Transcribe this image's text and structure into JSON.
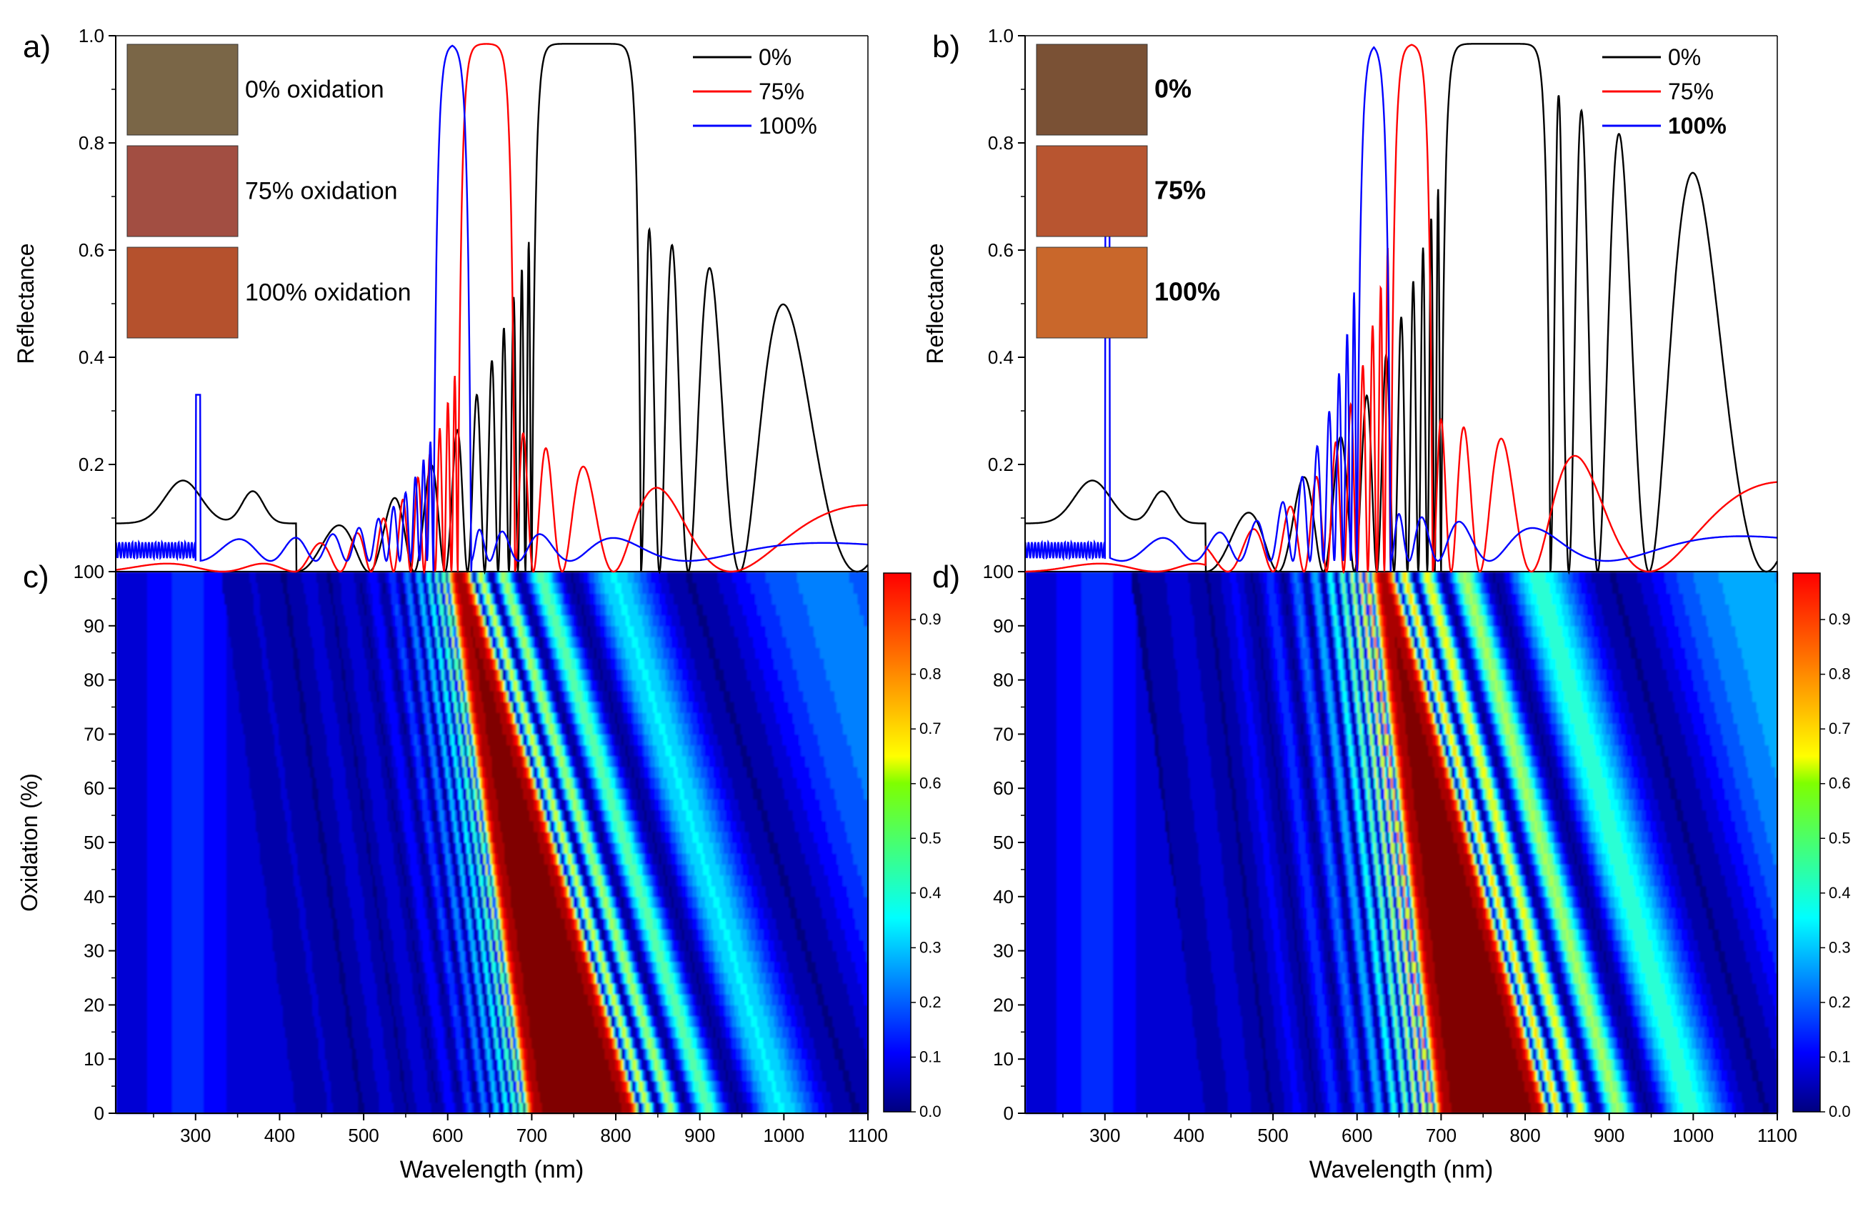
{
  "chart_data": [
    {
      "id": "a",
      "panel_label": "a)",
      "type": "line",
      "xlabel": "",
      "ylabel": "Reflectance",
      "xlim": [
        205,
        1100
      ],
      "ylim": [
        0.0,
        1.0
      ],
      "yticks": [
        "0.2",
        "0.4",
        "0.6",
        "0.8",
        "1.0"
      ],
      "legend_position": "top-right",
      "series": [
        {
          "name": "0%",
          "color": "#000000"
        },
        {
          "name": "75%",
          "color": "#ff0000"
        },
        {
          "name": "100%",
          "color": "#0000ff"
        }
      ],
      "swatches": [
        {
          "label": "0% oxidation",
          "color": "#7a6647"
        },
        {
          "label": "75% oxidation",
          "color": "#a24e42"
        },
        {
          "label": "100% oxidation",
          "color": "#b5512d"
        }
      ],
      "stopband": {
        "black": [
          700,
          830
        ],
        "red": [
          612,
          680
        ],
        "blue": [
          583,
          628
        ]
      }
    },
    {
      "id": "b",
      "panel_label": "b)",
      "type": "line",
      "xlabel": "",
      "ylabel": "Reflectance",
      "xlim": [
        205,
        1100
      ],
      "ylim": [
        0.0,
        1.0
      ],
      "yticks": [
        "0.2",
        "0.4",
        "0.6",
        "0.8",
        "1.0"
      ],
      "legend_position": "top-right",
      "series": [
        {
          "name": "0%",
          "color": "#000000"
        },
        {
          "name": "75%",
          "color": "#ff0000"
        },
        {
          "name": "100%",
          "color": "#0000ff"
        }
      ],
      "swatches": [
        {
          "label": "0%",
          "color": "#7a5135"
        },
        {
          "label": "75%",
          "color": "#b85530"
        },
        {
          "label": "100%",
          "color": "#c9672b"
        }
      ],
      "stopband": {
        "black": [
          700,
          830
        ],
        "red": [
          640,
          690
        ],
        "blue": [
          600,
          640
        ]
      }
    },
    {
      "id": "c",
      "panel_label": "c)",
      "type": "heatmap",
      "xlabel": "Wavelength (nm)",
      "ylabel": "Oxidation (%)",
      "xlim": [
        205,
        1100
      ],
      "ylim": [
        0,
        100
      ],
      "xticks": [
        "300",
        "400",
        "500",
        "600",
        "700",
        "800",
        "900",
        "1000",
        "1100"
      ],
      "yticks": [
        "0",
        "10",
        "20",
        "30",
        "40",
        "50",
        "60",
        "70",
        "80",
        "90",
        "100"
      ],
      "colorbar_ticks": [
        "0.0",
        "0.1",
        "0.2",
        "0.3",
        "0.4",
        "0.5",
        "0.6",
        "0.7",
        "0.8",
        "0.9"
      ],
      "stopband_at_0": [
        692,
        830
      ],
      "stopband_at_100": [
        598,
        628
      ]
    },
    {
      "id": "d",
      "panel_label": "d)",
      "type": "heatmap",
      "xlabel": "Wavelength (nm)",
      "ylabel": "",
      "xlim": [
        205,
        1100
      ],
      "ylim": [
        0,
        100
      ],
      "xticks": [
        "300",
        "400",
        "500",
        "600",
        "700",
        "800",
        "900",
        "1000",
        "1100"
      ],
      "yticks": [
        "0",
        "10",
        "20",
        "30",
        "40",
        "50",
        "60",
        "70",
        "80",
        "90",
        "100"
      ],
      "colorbar_ticks": [
        "0.0",
        "0.1",
        "0.2",
        "0.3",
        "0.4",
        "0.5",
        "0.6",
        "0.7",
        "0.8",
        "0.9"
      ],
      "stopband_at_0": [
        692,
        830
      ],
      "stopband_at_100": [
        615,
        645
      ]
    }
  ]
}
